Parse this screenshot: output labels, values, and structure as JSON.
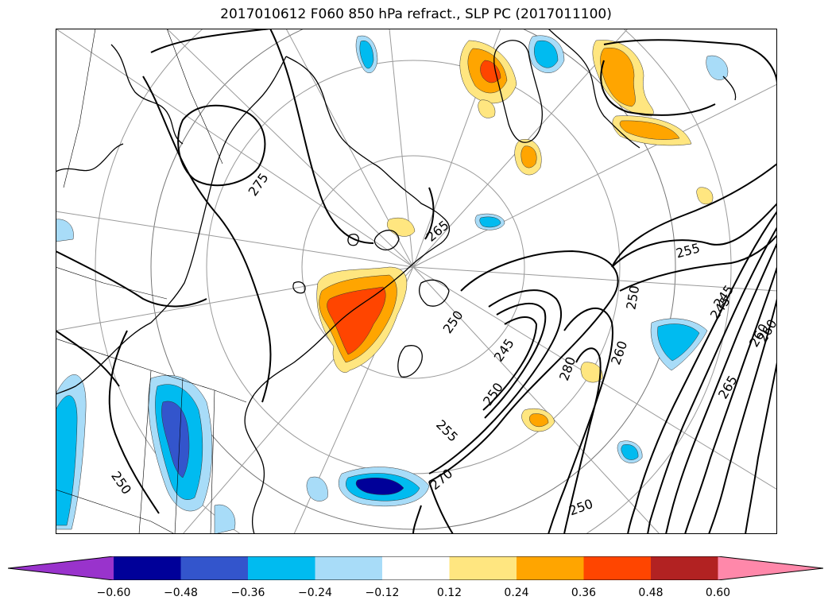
{
  "title": "2017010612 F060 850 hPa refract., SLP PC (2017011100)",
  "map": {
    "contour_labels": [
      "275",
      "265",
      "255",
      "250",
      "245",
      "260",
      "280",
      "250",
      "260",
      "250",
      "245",
      "255",
      "270",
      "250",
      "250",
      "245",
      "260",
      "265"
    ]
  },
  "colorbar": {
    "ticks": [
      "−0.60",
      "−0.48",
      "−0.36",
      "−0.24",
      "−0.12",
      "0.12",
      "0.24",
      "0.36",
      "0.48",
      "0.60"
    ],
    "colors": [
      "#9933cc",
      "#000099",
      "#3355cc",
      "#00bbf0",
      "#a8dcf8",
      "#ffffff",
      "#ffe680",
      "#ffa500",
      "#ff4500",
      "#b22222",
      "#ff88aa"
    ]
  }
}
